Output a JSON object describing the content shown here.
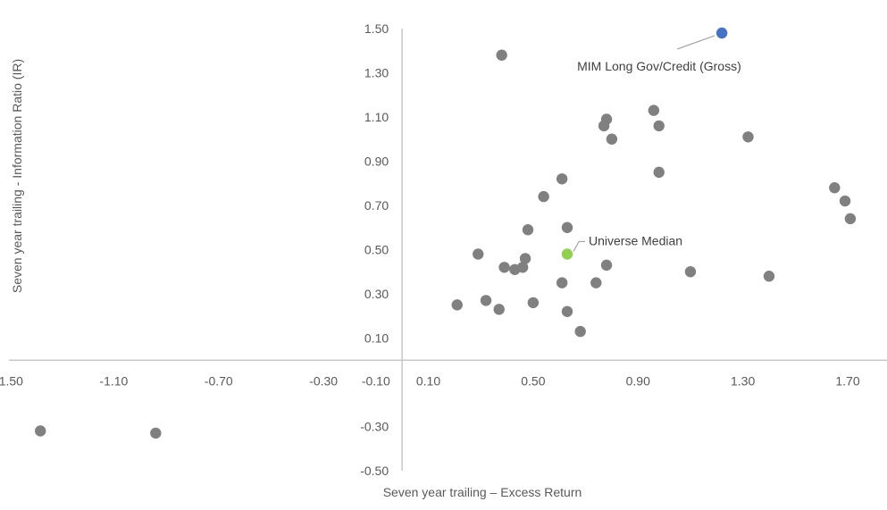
{
  "chart_data": {
    "type": "scatter",
    "title": "",
    "xlabel": "Seven year trailing – Excess Return",
    "ylabel": "Seven year trailing - Information Ratio (IR)",
    "xlim": [
      -1.5,
      1.85
    ],
    "ylim": [
      -0.5,
      1.5
    ],
    "x_ticks": [
      "-1.50",
      "-1.10",
      "-0.70",
      "-0.30",
      "-0.10",
      "0.10",
      "0.50",
      "0.90",
      "1.30",
      "1.70"
    ],
    "y_ticks": [
      "1.50",
      "1.30",
      "1.10",
      "0.90",
      "0.70",
      "0.50",
      "0.30",
      "0.10",
      "-0.30",
      "-0.50"
    ],
    "grid": false,
    "legend": "none",
    "colors": {
      "peer": "#808080",
      "highlight": "#4472C4",
      "median": "#92D050",
      "axis": "#BFBFBF",
      "text": "#595959"
    },
    "series": [
      {
        "name": "",
        "points": [
          {
            "x": 0.21,
            "y": 0.25
          },
          {
            "x": 0.29,
            "y": 0.48
          },
          {
            "x": 0.32,
            "y": 0.27
          },
          {
            "x": 0.37,
            "y": 0.23
          },
          {
            "x": 0.39,
            "y": 0.42
          },
          {
            "x": 0.38,
            "y": 1.38
          },
          {
            "x": 0.43,
            "y": 0.41
          },
          {
            "x": 0.46,
            "y": 0.42
          },
          {
            "x": 0.47,
            "y": 0.46
          },
          {
            "x": 0.48,
            "y": 0.59
          },
          {
            "x": 0.5,
            "y": 0.26
          },
          {
            "x": 0.54,
            "y": 0.74
          },
          {
            "x": 0.61,
            "y": 0.82
          },
          {
            "x": 0.61,
            "y": 0.35
          },
          {
            "x": 0.63,
            "y": 0.6
          },
          {
            "x": 0.63,
            "y": 0.22
          },
          {
            "x": 0.68,
            "y": 0.13
          },
          {
            "x": 0.74,
            "y": 0.35
          },
          {
            "x": 0.77,
            "y": 1.06
          },
          {
            "x": 0.78,
            "y": 1.09
          },
          {
            "x": 0.78,
            "y": 0.43
          },
          {
            "x": 0.8,
            "y": 1.0
          },
          {
            "x": 0.96,
            "y": 1.13
          },
          {
            "x": 0.98,
            "y": 1.06
          },
          {
            "x": 0.98,
            "y": 0.85
          },
          {
            "x": 1.1,
            "y": 0.4
          },
          {
            "x": 1.32,
            "y": 1.01
          },
          {
            "x": 1.4,
            "y": 0.38
          },
          {
            "x": 1.65,
            "y": 0.78
          },
          {
            "x": 1.69,
            "y": 0.72
          },
          {
            "x": 1.71,
            "y": 0.64
          },
          {
            "x": -1.38,
            "y": -0.32
          },
          {
            "x": -0.94,
            "y": -0.33
          }
        ]
      },
      {
        "name": "MIM Long Gov/Credit (Gross)",
        "points": [
          {
            "x": 1.22,
            "y": 1.48
          }
        ]
      },
      {
        "name": "Universe Median",
        "points": [
          {
            "x": 0.63,
            "y": 0.48
          }
        ]
      }
    ],
    "annotations": [
      {
        "text": "MIM Long Gov/Credit (Gross)",
        "target_series": "MIM Long Gov/Credit (Gross)"
      },
      {
        "text": "Universe Median",
        "target_series": "Universe Median"
      }
    ]
  }
}
